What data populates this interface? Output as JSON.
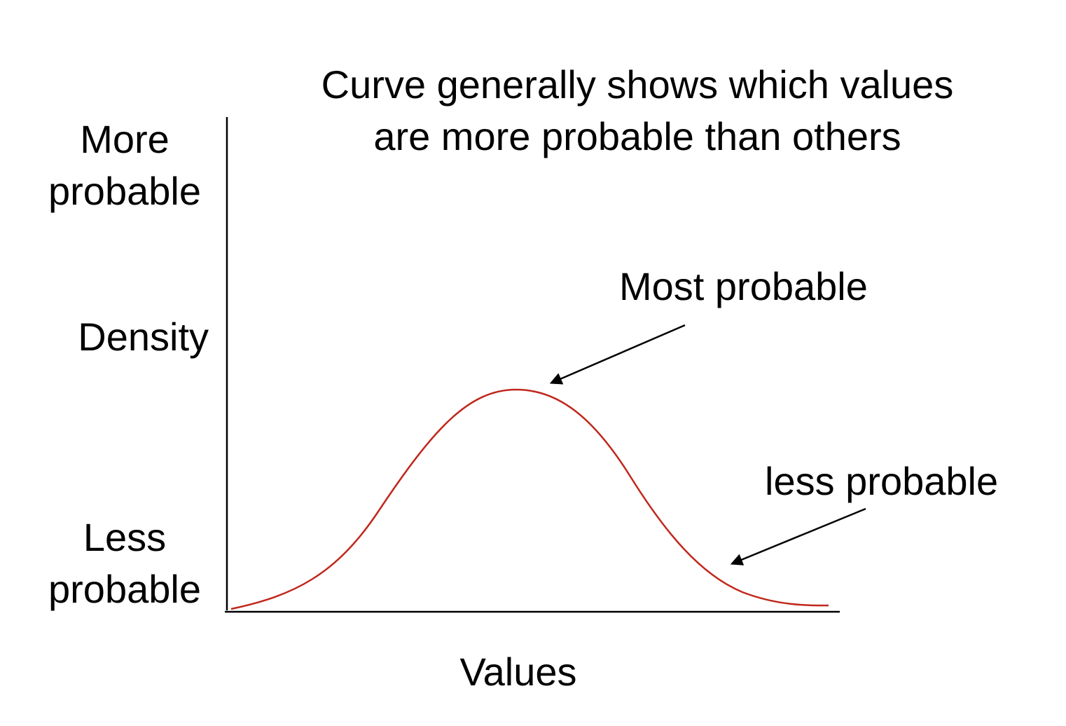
{
  "title": {
    "line1": "Curve generally shows which values",
    "line2": "are more probable than others"
  },
  "y_axis": {
    "top_line1": "More",
    "top_line2": "probable",
    "middle": "Density",
    "bottom_line1": "Less",
    "bottom_line2": "probable"
  },
  "x_axis": {
    "label": "Values"
  },
  "annotations": {
    "peak": "Most probable",
    "tail": "less probable"
  },
  "colors": {
    "curve": "#c0281c",
    "axis": "#000000",
    "text": "#000000"
  }
}
